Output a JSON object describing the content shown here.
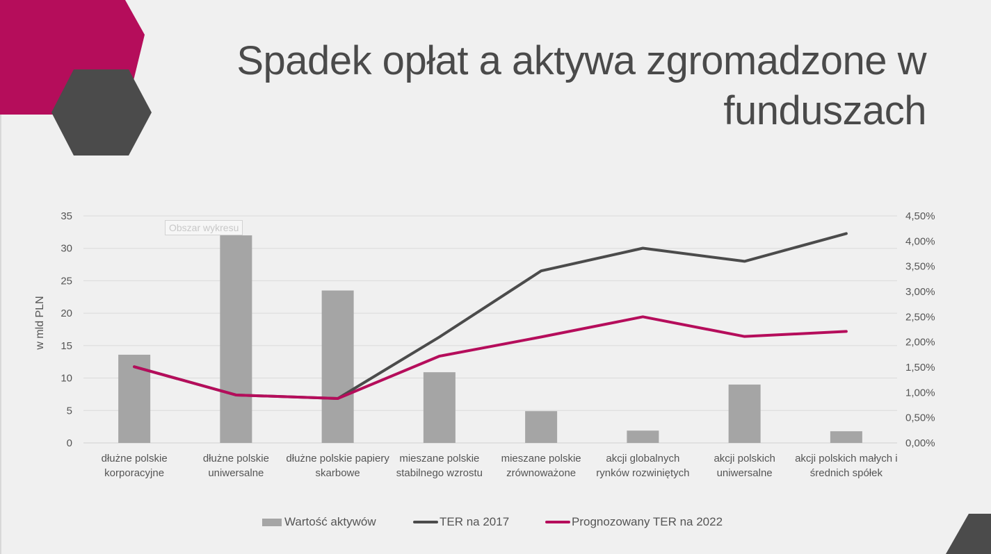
{
  "slide": {
    "title_lines": [
      "Spadek opłat a aktywa zgromadzone w",
      "funduszach"
    ],
    "tooltip": "Obszar wykresu"
  },
  "colors": {
    "magenta": "#b50d5b",
    "dark_gray": "#4b4b4b",
    "bar_gray": "#a5a5a5",
    "line_2017": "#4b4b4b",
    "line_2022": "#b50d5b"
  },
  "chart_data": {
    "type": "bar",
    "categories": [
      "dłużne polskie korporacyjne",
      "dłużne polskie uniwersalne",
      "dłużne polskie papiery skarbowe",
      "mieszane polskie stabilnego wzrostu",
      "mieszane polskie zrównoważone",
      "akcji globalnych rynków rozwiniętych",
      "akcji polskich uniwersalne",
      "akcji polskich małych i średnich spółek"
    ],
    "category_lines": [
      [
        "dłużne polskie",
        "korporacyjne"
      ],
      [
        "dłużne polskie",
        "uniwersalne"
      ],
      [
        "dłużne polskie papiery",
        "skarbowe"
      ],
      [
        "mieszane polskie",
        "stabilnego wzrostu"
      ],
      [
        "mieszane polskie",
        "zrównoważone"
      ],
      [
        "akcji globalnych",
        "rynków rozwiniętych"
      ],
      [
        "akcji polskich",
        "uniwersalne"
      ],
      [
        "akcji polskich małych i",
        "średnich spółek"
      ]
    ],
    "ylabel": "w mld PLN",
    "ylim": [
      0,
      35
    ],
    "y_ticks": [
      "0",
      "5",
      "10",
      "15",
      "20",
      "25",
      "30",
      "35"
    ],
    "y2lim": [
      0,
      4.5
    ],
    "y2_ticks": [
      "0,00%",
      "0,50%",
      "1,00%",
      "1,50%",
      "2,00%",
      "2,50%",
      "3,00%",
      "3,50%",
      "4,00%",
      "4,50%"
    ],
    "grid": true,
    "legend_position": "bottom",
    "series": [
      {
        "name": "Wartość aktywów",
        "type": "bar",
        "axis": "left",
        "values": [
          13.6,
          32.0,
          23.5,
          10.9,
          4.9,
          1.9,
          9.0,
          1.8
        ]
      },
      {
        "name": "TER na 2017",
        "type": "line",
        "axis": "right",
        "values": [
          1.51,
          0.95,
          0.88,
          2.1,
          3.41,
          3.86,
          3.6,
          4.15
        ]
      },
      {
        "name": "Prognozowany TER na 2022",
        "type": "line",
        "axis": "right",
        "values": [
          1.51,
          0.95,
          0.88,
          1.72,
          2.1,
          2.5,
          2.11,
          2.21
        ]
      }
    ]
  }
}
